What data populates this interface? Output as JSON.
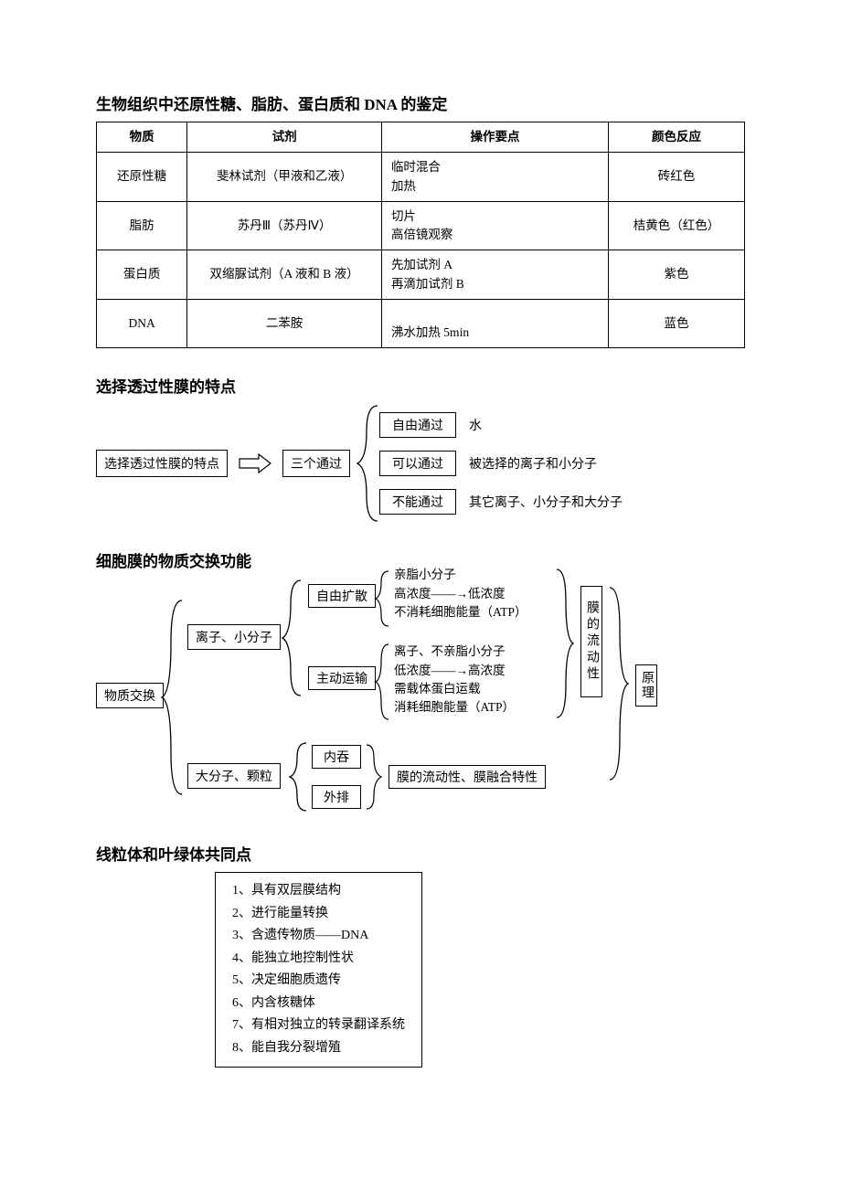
{
  "section1": {
    "title": "生物组织中还原性糖、脂肪、蛋白质和 DNA 的鉴定",
    "headers": [
      "物质",
      "试剂",
      "操作要点",
      "颜色反应"
    ],
    "rows": [
      {
        "c0": "还原性糖",
        "c1": "斐林试剂（甲液和乙液）",
        "c2": "临时混合\n加热",
        "c3": "砖红色"
      },
      {
        "c0": "脂肪",
        "c1": "苏丹Ⅲ（苏丹Ⅳ）",
        "c2": "切片\n高倍镜观察",
        "c3": "桔黄色（红色）"
      },
      {
        "c0": "蛋白质",
        "c1": "双缩脲试剂（A 液和 B 液）",
        "c2": "先加试剂 A\n再滴加试剂 B",
        "c3": "紫色"
      },
      {
        "c0": "DNA",
        "c1": "二苯胺",
        "c2": "\n沸水加热 5min",
        "c3": "蓝色"
      }
    ]
  },
  "section2": {
    "title": "选择透过性膜的特点",
    "root": "选择透过性膜的特点",
    "mid": "三个通过",
    "items": [
      {
        "box": "自由通过",
        "desc": "水"
      },
      {
        "box": "可以通过",
        "desc": "被选择的离子和小分子"
      },
      {
        "box": "不能通过",
        "desc": "其它离子、小分子和大分子"
      }
    ]
  },
  "section3": {
    "title": "细胞膜的物质交换功能",
    "root": "物质交换",
    "b1": "离子、小分子",
    "b2": "大分子、颗粒",
    "b1a": "自由扩散",
    "b1b": "主动运输",
    "b2a": "内吞",
    "b2b": "外排",
    "t1": [
      "亲脂小分子",
      "高浓度——→低浓度",
      "不消耗细胞能量（ATP）"
    ],
    "t2": [
      "离子、不亲脂小分子",
      "低浓度——→高浓度",
      "需载体蛋白运载",
      "消耗细胞能量（ATP）"
    ],
    "t3": "膜的流动性、膜融合特性",
    "right1": "膜的流动性",
    "right2": "原理"
  },
  "section4": {
    "title": "线粒体和叶绿体共同点",
    "items": [
      "1、具有双层膜结构",
      "2、进行能量转换",
      "3、含遗传物质——DNA",
      "4、能独立地控制性状",
      "5、决定细胞质遗传",
      "6、内含核糖体",
      "7、有相对独立的转录翻译系统",
      "8、能自我分裂增殖"
    ]
  }
}
